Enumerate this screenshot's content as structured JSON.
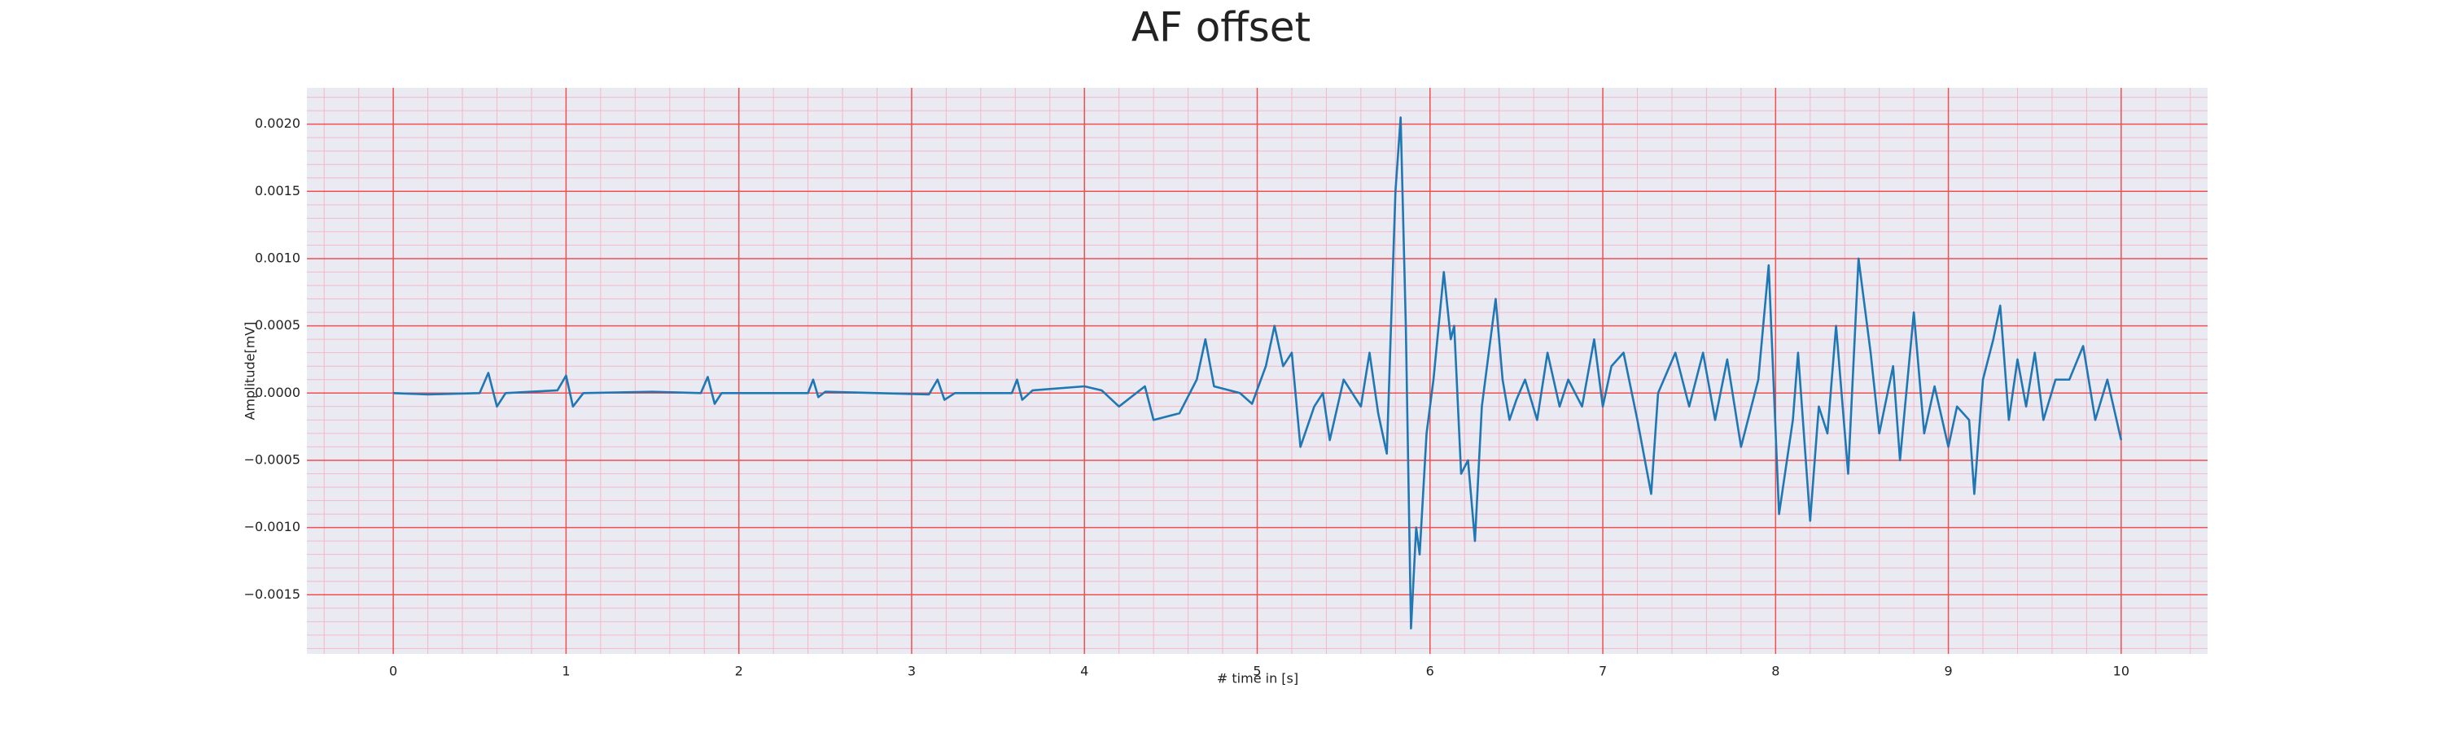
{
  "chart_data": {
    "type": "line",
    "title": "AF offset",
    "x_label": "# time in [s]",
    "y_label": "Amplitude[mV]",
    "xlim": [
      -0.5,
      10.5
    ],
    "ylim": [
      -0.00194,
      0.00227
    ],
    "xticks": [
      0,
      1,
      2,
      3,
      4,
      5,
      6,
      7,
      8,
      9,
      10
    ],
    "yticks": [
      {
        "value": -0.0015,
        "label": "−0.0015"
      },
      {
        "value": -0.001,
        "label": "−0.0010"
      },
      {
        "value": -0.0005,
        "label": "−0.0005"
      },
      {
        "value": 0,
        "label": "0.0000"
      },
      {
        "value": 0.0005,
        "label": "0.0005"
      },
      {
        "value": 0.001,
        "label": "0.0010"
      },
      {
        "value": 0.0015,
        "label": "0.0015"
      },
      {
        "value": 0.002,
        "label": "0.0020"
      }
    ],
    "grid": true,
    "minor_grid": true,
    "series": [
      {
        "color": "#1f77b4",
        "x": [
          0,
          0.2,
          0.5,
          0.55,
          0.6,
          0.65,
          0.95,
          1.0,
          1.04,
          1.1,
          1.5,
          1.78,
          1.82,
          1.86,
          1.9,
          2.4,
          2.43,
          2.46,
          2.5,
          3.1,
          3.15,
          3.19,
          3.25,
          3.58,
          3.61,
          3.64,
          3.7,
          4.0,
          4.1,
          4.2,
          4.35,
          4.4,
          4.55,
          4.65,
          4.7,
          4.75,
          4.9,
          4.97,
          5.05,
          5.1,
          5.15,
          5.2,
          5.25,
          5.33,
          5.38,
          5.42,
          5.5,
          5.6,
          5.65,
          5.7,
          5.75,
          5.8,
          5.83,
          5.86,
          5.89,
          5.92,
          5.94,
          5.98,
          6.02,
          6.08,
          6.12,
          6.14,
          6.18,
          6.22,
          6.26,
          6.3,
          6.38,
          6.42,
          6.46,
          6.5,
          6.55,
          6.62,
          6.68,
          6.75,
          6.8,
          6.88,
          6.95,
          7.0,
          7.05,
          7.12,
          7.2,
          7.28,
          7.32,
          7.42,
          7.5,
          7.58,
          7.65,
          7.72,
          7.8,
          7.9,
          7.96,
          8.02,
          8.1,
          8.13,
          8.2,
          8.25,
          8.3,
          8.35,
          8.42,
          8.48,
          8.55,
          8.6,
          8.68,
          8.72,
          8.8,
          8.86,
          8.92,
          9.0,
          9.05,
          9.12,
          9.15,
          9.2,
          9.26,
          9.3,
          9.35,
          9.4,
          9.45,
          9.5,
          9.55,
          9.62,
          9.7,
          9.78,
          9.85,
          9.92,
          10.0
        ],
        "values": [
          0,
          -1e-05,
          0,
          0.00015,
          -0.0001,
          0,
          2e-05,
          0.00013,
          -0.0001,
          0,
          1e-05,
          0,
          0.00012,
          -8e-05,
          0,
          0,
          0.0001,
          -3e-05,
          1e-05,
          -1e-05,
          0.0001,
          -5e-05,
          0,
          0,
          0.0001,
          -5e-05,
          2e-05,
          5e-05,
          2e-05,
          -0.0001,
          5e-05,
          -0.0002,
          -0.00015,
          0.0001,
          0.0004,
          5e-05,
          0,
          -8e-05,
          0.0002,
          0.0005,
          0.0002,
          0.0003,
          -0.0004,
          -0.0001,
          0,
          -0.00035,
          0.0001,
          -0.0001,
          0.0003,
          -0.00015,
          -0.00045,
          0.0015,
          0.00205,
          0.0005,
          -0.00175,
          -0.001,
          -0.0012,
          -0.0003,
          0.0001,
          0.0009,
          0.0004,
          0.0005,
          -0.0006,
          -0.0005,
          -0.0011,
          -0.0001,
          0.0007,
          0.0001,
          -0.0002,
          -5e-05,
          0.0001,
          -0.0002,
          0.0003,
          -0.0001,
          0.0001,
          -0.0001,
          0.0004,
          -0.0001,
          0.0002,
          0.0003,
          -0.0002,
          -0.00075,
          0,
          0.0003,
          -0.0001,
          0.0003,
          -0.0002,
          0.00025,
          -0.0004,
          0.0001,
          0.00095,
          -0.0009,
          -0.0002,
          0.0003,
          -0.00095,
          -0.0001,
          -0.0003,
          0.0005,
          -0.0006,
          0.001,
          0.0003,
          -0.0003,
          0.0002,
          -0.0005,
          0.0006,
          -0.0003,
          5e-05,
          -0.0004,
          -0.0001,
          -0.0002,
          -0.00075,
          0.0001,
          0.0004,
          0.00065,
          -0.0002,
          0.00025,
          -0.0001,
          0.0003,
          -0.0002,
          0.0001,
          0.0001,
          0.00035,
          -0.0002,
          0.0001,
          -0.00035
        ]
      }
    ]
  }
}
